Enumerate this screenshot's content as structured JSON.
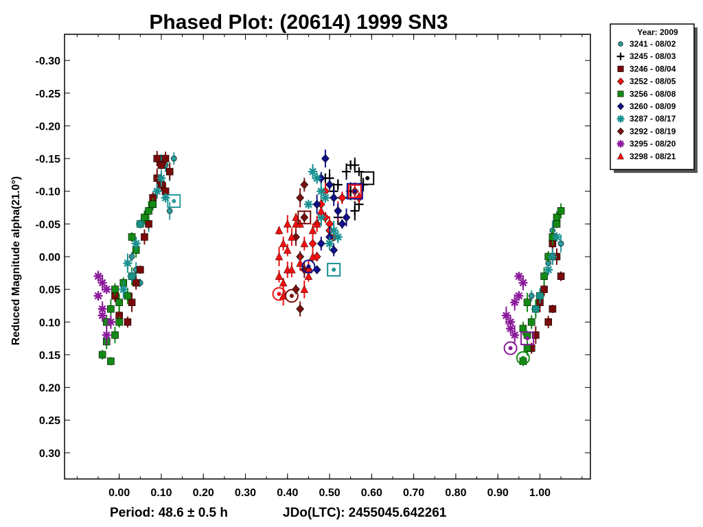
{
  "chart_data": {
    "type": "scatter",
    "title": "Phased Plot: (20614) 1999 SN3",
    "ylabel": "Reduced Magnitude alpha(21.0°)",
    "footer_period": "Period: 48.6 ± 0.5 h",
    "footer_jd": "JDo(LTC): 2455045.642261",
    "xlim": [
      -0.13,
      1.12
    ],
    "ylim": [
      0.34,
      -0.34
    ],
    "x_ticks": [
      "0.00",
      "0.10",
      "0.20",
      "0.30",
      "0.40",
      "0.50",
      "0.60",
      "0.70",
      "0.80",
      "0.90",
      "1.00"
    ],
    "y_ticks": [
      "-0.30",
      "-0.25",
      "-0.20",
      "-0.15",
      "-0.10",
      "-0.05",
      "0.00",
      "0.05",
      "0.10",
      "0.15",
      "0.20",
      "0.25",
      "0.30"
    ],
    "legend": {
      "title": "Year: 2009",
      "placement": "outside-top-right",
      "entries": [
        {
          "label": "3241 - 08/02",
          "color": "#2a9a9a",
          "marker": "circle"
        },
        {
          "label": "3245 - 08/03",
          "color": "#000000",
          "marker": "plus"
        },
        {
          "label": "3246 - 08/04",
          "color": "#7a0a0a",
          "marker": "square"
        },
        {
          "label": "3252 - 08/05",
          "color": "#ff1010",
          "marker": "diamond"
        },
        {
          "label": "3256 - 08/08",
          "color": "#148a14",
          "marker": "square"
        },
        {
          "label": "3260 - 08/09",
          "color": "#10108a",
          "marker": "diamond"
        },
        {
          "label": "3287 - 08/17",
          "color": "#1a9090",
          "marker": "asterisk"
        },
        {
          "label": "3292 - 08/19",
          "color": "#7a1010",
          "marker": "diamond"
        },
        {
          "label": "3295 - 08/20",
          "color": "#8a1a9a",
          "marker": "asterisk"
        },
        {
          "label": "3298 - 08/21",
          "color": "#ee1010",
          "marker": "triangle"
        }
      ]
    },
    "series": [
      {
        "label_index": 0,
        "points": [
          [
            0.1,
            -0.15
          ],
          [
            0.11,
            -0.14
          ],
          [
            0.12,
            -0.13
          ],
          [
            0.13,
            -0.15
          ],
          [
            0.12,
            -0.07
          ],
          [
            0.06,
            -0.06
          ],
          [
            0.07,
            -0.05
          ],
          [
            0.03,
            0.0
          ],
          [
            0.04,
            0.02
          ],
          [
            0.05,
            0.04
          ],
          [
            1.02,
            0.01
          ],
          [
            1.03,
            -0.04
          ],
          [
            1.04,
            -0.06
          ],
          [
            1.05,
            -0.02
          ],
          [
            0.98,
            0.06
          ],
          [
            0.99,
            0.08
          ]
        ]
      },
      {
        "label_index": 1,
        "points": [
          [
            0.5,
            -0.12
          ],
          [
            0.52,
            -0.11
          ],
          [
            0.54,
            -0.13
          ],
          [
            0.55,
            -0.14
          ],
          [
            0.56,
            -0.14
          ],
          [
            0.57,
            -0.13
          ],
          [
            0.58,
            -0.11
          ],
          [
            0.56,
            -0.07
          ],
          [
            0.57,
            -0.08
          ],
          [
            0.55,
            -0.1
          ],
          [
            0.53,
            -0.09
          ],
          [
            0.51,
            -0.1
          ],
          [
            0.49,
            -0.12
          ],
          [
            0.52,
            -0.06
          ]
        ]
      },
      {
        "label_index": 2,
        "points": [
          [
            0.09,
            -0.15
          ],
          [
            0.1,
            -0.14
          ],
          [
            0.11,
            -0.15
          ],
          [
            0.09,
            -0.12
          ],
          [
            0.1,
            -0.11
          ],
          [
            0.11,
            -0.1
          ],
          [
            0.08,
            -0.09
          ],
          [
            0.12,
            -0.13
          ],
          [
            0.07,
            -0.05
          ],
          [
            0.06,
            -0.03
          ],
          [
            0.05,
            0.02
          ],
          [
            0.04,
            0.04
          ],
          [
            0.03,
            0.07
          ],
          [
            -0.01,
            0.06
          ],
          [
            0.0,
            0.09
          ],
          [
            0.02,
            0.1
          ],
          [
            1.04,
            0.0
          ],
          [
            1.05,
            0.03
          ],
          [
            1.03,
            -0.02
          ],
          [
            1.03,
            0.08
          ],
          [
            1.01,
            0.05
          ],
          [
            1.0,
            0.07
          ],
          [
            1.02,
            0.1
          ],
          [
            0.99,
            0.12
          ],
          [
            0.98,
            0.14
          ]
        ]
      },
      {
        "label_index": 3,
        "points": [
          [
            0.47,
            -0.05
          ],
          [
            0.48,
            -0.08
          ],
          [
            0.49,
            -0.06
          ],
          [
            0.46,
            -0.02
          ],
          [
            0.47,
            0.0
          ],
          [
            0.5,
            -0.05
          ],
          [
            0.51,
            -0.03
          ],
          [
            0.45,
            0.02
          ],
          [
            0.52,
            -0.07
          ],
          [
            0.53,
            -0.09
          ],
          [
            0.56,
            -0.1
          ],
          [
            0.57,
            -0.09
          ],
          [
            0.49,
            -0.1
          ],
          [
            0.5,
            -0.04
          ]
        ]
      },
      {
        "label_index": 4,
        "points": [
          [
            -0.04,
            0.15
          ],
          [
            -0.03,
            0.13
          ],
          [
            -0.02,
            0.16
          ],
          [
            -0.03,
            0.1
          ],
          [
            -0.02,
            0.08
          ],
          [
            -0.01,
            0.05
          ],
          [
            0.0,
            0.07
          ],
          [
            0.01,
            0.04
          ],
          [
            0.02,
            0.06
          ],
          [
            0.03,
            -0.03
          ],
          [
            0.04,
            -0.01
          ],
          [
            0.05,
            -0.05
          ],
          [
            0.06,
            -0.06
          ],
          [
            0.07,
            -0.07
          ],
          [
            0.08,
            -0.08
          ],
          [
            0.03,
            0.03
          ],
          [
            0.0,
            0.1
          ],
          [
            -0.01,
            0.12
          ],
          [
            0.96,
            0.16
          ],
          [
            0.97,
            0.14
          ],
          [
            0.97,
            0.12
          ],
          [
            0.98,
            0.1
          ],
          [
            0.99,
            0.08
          ],
          [
            1.0,
            0.06
          ],
          [
            1.01,
            0.03
          ],
          [
            1.02,
            0.0
          ],
          [
            1.03,
            -0.03
          ],
          [
            1.04,
            -0.06
          ],
          [
            1.05,
            -0.07
          ],
          [
            1.04,
            -0.05
          ],
          [
            0.96,
            0.11
          ],
          [
            0.97,
            0.07
          ]
        ]
      },
      {
        "label_index": 5,
        "points": [
          [
            0.47,
            -0.08
          ],
          [
            0.48,
            -0.12
          ],
          [
            0.49,
            -0.15
          ],
          [
            0.5,
            -0.11
          ],
          [
            0.51,
            -0.09
          ],
          [
            0.53,
            -0.05
          ],
          [
            0.52,
            -0.07
          ],
          [
            0.47,
            0.02
          ],
          [
            0.48,
            -0.02
          ],
          [
            0.5,
            -0.03
          ],
          [
            0.51,
            -0.01
          ],
          [
            0.54,
            -0.06
          ]
        ]
      },
      {
        "label_index": 6,
        "points": [
          [
            0.1,
            -0.12
          ],
          [
            0.11,
            -0.09
          ],
          [
            0.09,
            -0.1
          ],
          [
            0.05,
            -0.05
          ],
          [
            0.04,
            -0.02
          ],
          [
            0.02,
            0.01
          ],
          [
            0.03,
            0.03
          ],
          [
            0.01,
            0.05
          ],
          [
            0.47,
            -0.12
          ],
          [
            0.48,
            -0.1
          ],
          [
            0.49,
            -0.09
          ],
          [
            0.46,
            -0.13
          ],
          [
            0.45,
            -0.08
          ],
          [
            0.5,
            -0.02
          ],
          [
            0.51,
            -0.04
          ],
          [
            0.52,
            -0.03
          ],
          [
            0.48,
            -0.06
          ],
          [
            1.02,
            0.02
          ],
          [
            1.03,
            0.0
          ],
          [
            1.04,
            -0.03
          ],
          [
            1.0,
            0.06
          ],
          [
            0.99,
            0.08
          ]
        ]
      },
      {
        "label_index": 7,
        "points": [
          [
            0.44,
            -0.11
          ],
          [
            0.43,
            -0.09
          ],
          [
            0.44,
            -0.06
          ],
          [
            0.42,
            -0.03
          ],
          [
            0.43,
            0.0
          ],
          [
            0.44,
            0.02
          ],
          [
            0.42,
            0.05
          ],
          [
            0.43,
            0.08
          ]
        ]
      },
      {
        "label_index": 8,
        "points": [
          [
            -0.05,
            0.03
          ],
          [
            -0.04,
            0.04
          ],
          [
            -0.05,
            0.06
          ],
          [
            -0.04,
            0.08
          ],
          [
            -0.03,
            0.05
          ],
          [
            -0.02,
            0.1
          ],
          [
            -0.03,
            0.12
          ],
          [
            -0.04,
            0.09
          ],
          [
            0.92,
            0.09
          ],
          [
            0.93,
            0.11
          ],
          [
            0.94,
            0.07
          ],
          [
            0.95,
            0.06
          ],
          [
            0.96,
            0.04
          ],
          [
            0.95,
            0.03
          ],
          [
            0.93,
            0.1
          ],
          [
            0.94,
            0.12
          ]
        ]
      },
      {
        "label_index": 9,
        "points": [
          [
            0.38,
            -0.04
          ],
          [
            0.39,
            -0.02
          ],
          [
            0.38,
            0.0
          ],
          [
            0.4,
            -0.01
          ],
          [
            0.41,
            -0.03
          ],
          [
            0.42,
            -0.05
          ],
          [
            0.4,
            0.02
          ],
          [
            0.39,
            0.04
          ],
          [
            0.41,
            0.02
          ],
          [
            0.43,
            -0.05
          ],
          [
            0.44,
            -0.02
          ],
          [
            0.45,
            0.02
          ],
          [
            0.46,
            0.0
          ],
          [
            0.44,
            0.05
          ],
          [
            0.45,
            0.03
          ],
          [
            0.47,
            -0.05
          ],
          [
            0.48,
            -0.07
          ],
          [
            0.43,
            0.01
          ],
          [
            0.42,
            -0.06
          ],
          [
            0.46,
            -0.04
          ],
          [
            0.39,
            0.06
          ],
          [
            0.38,
            0.03
          ],
          [
            0.4,
            -0.05
          ]
        ]
      }
    ],
    "highlights": [
      {
        "label_index": 0,
        "x": 0.13,
        "y": -0.085,
        "shape": "square"
      },
      {
        "label_index": 1,
        "x": 0.59,
        "y": -0.12,
        "shape": "square"
      },
      {
        "label_index": 3,
        "x": 0.56,
        "y": -0.1,
        "shape": "square"
      },
      {
        "label_index": 5,
        "x": 0.56,
        "y": -0.1,
        "shape": "square-large"
      },
      {
        "label_index": 6,
        "x": 0.51,
        "y": 0.02,
        "shape": "square"
      },
      {
        "label_index": 9,
        "x": 0.38,
        "y": 0.057,
        "shape": "circle"
      },
      {
        "label_index": 7,
        "x": 0.41,
        "y": 0.06,
        "shape": "circle"
      },
      {
        "label_index": 8,
        "x": 0.93,
        "y": 0.14,
        "shape": "circle"
      },
      {
        "label_index": 4,
        "x": 0.96,
        "y": 0.155,
        "shape": "circle"
      },
      {
        "label_index": 8,
        "x": 0.97,
        "y": 0.125,
        "shape": "square"
      },
      {
        "label_index": 2,
        "x": 0.44,
        "y": -0.06,
        "shape": "square"
      },
      {
        "label_index": 5,
        "x": 0.45,
        "y": 0.015,
        "shape": "circle"
      }
    ]
  }
}
